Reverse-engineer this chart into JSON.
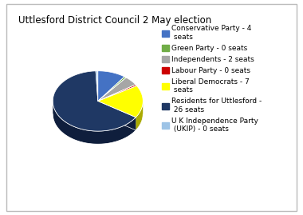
{
  "title": "Uttlesford District Council 2 May election",
  "parties": [
    "Conservative Party - 4\n seats",
    "Green Party - 0 seats",
    "Independents - 2 seats",
    "Labour Party - 0 seats",
    "Liberal Democrats - 7\n seats",
    "Residents for Uttlesford -\n 26 seats",
    "U K Independence Party\n (UKIP) - 0 seats"
  ],
  "seats": [
    4,
    0.3,
    2,
    0.3,
    7,
    26,
    0.3
  ],
  "colors": [
    "#4472C4",
    "#70AD47",
    "#A6A6A6",
    "#CC0000",
    "#FFFF00",
    "#1F3864",
    "#9DC3E6"
  ],
  "dark_colors": [
    "#2a4a8a",
    "#4a7a2a",
    "#707070",
    "#880000",
    "#aaaa00",
    "#0f1e3c",
    "#6a93b6"
  ],
  "startangle": 90,
  "background_color": "#FFFFFF",
  "legend_fontsize": 6.5,
  "title_fontsize": 8.5
}
